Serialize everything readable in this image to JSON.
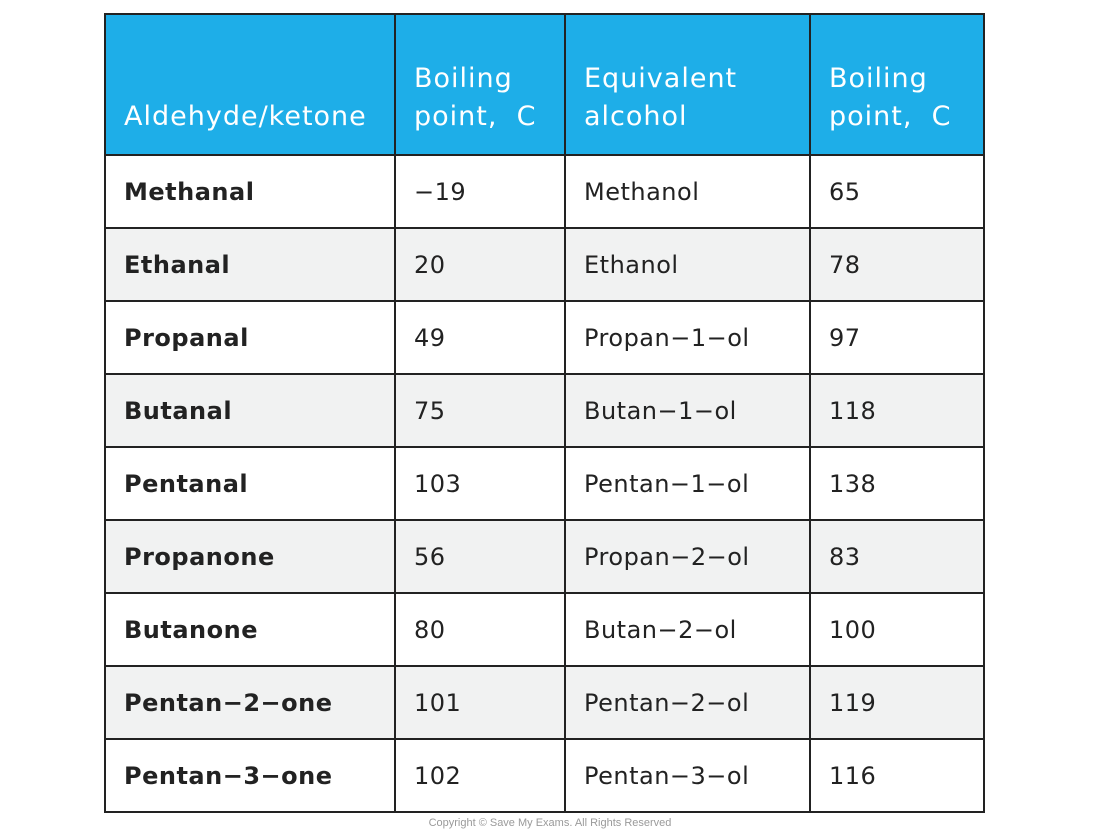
{
  "table": {
    "headers": [
      "Aldehyde/ketone",
      "Boiling point, C",
      "Equivalent alcohol",
      "Boiling point, C"
    ],
    "header_lines": [
      [
        "Aldehyde/ketone"
      ],
      [
        "Boiling",
        "point,  C"
      ],
      [
        "Equivalent",
        "alcohol"
      ],
      [
        "Boiling",
        "point,  C"
      ]
    ],
    "rows": [
      [
        "Methanal",
        "−19",
        "Methanol",
        "65"
      ],
      [
        "Ethanal",
        "20",
        "Ethanol",
        "78"
      ],
      [
        "Propanal",
        "49",
        "Propan−1−ol",
        "97"
      ],
      [
        "Butanal",
        "75",
        "Butan−1−ol",
        "118"
      ],
      [
        "Pentanal",
        "103",
        "Pentan−1−ol",
        "138"
      ],
      [
        "Propanone",
        "56",
        "Propan−2−ol",
        "83"
      ],
      [
        "Butanone",
        "80",
        "Butan−2−ol",
        "100"
      ],
      [
        "Pentan−2−one",
        "101",
        "Pentan−2−ol",
        "119"
      ],
      [
        "Pentan−3−one",
        "102",
        "Pentan−3−ol",
        "116"
      ]
    ]
  },
  "colors": {
    "header_bg": "#1eaee8",
    "header_text": "#ffffff",
    "border": "#222222",
    "row_alt": "#f1f2f2"
  },
  "footer": {
    "copyright": "Copyright © Save My Exams. All Rights Reserved"
  }
}
